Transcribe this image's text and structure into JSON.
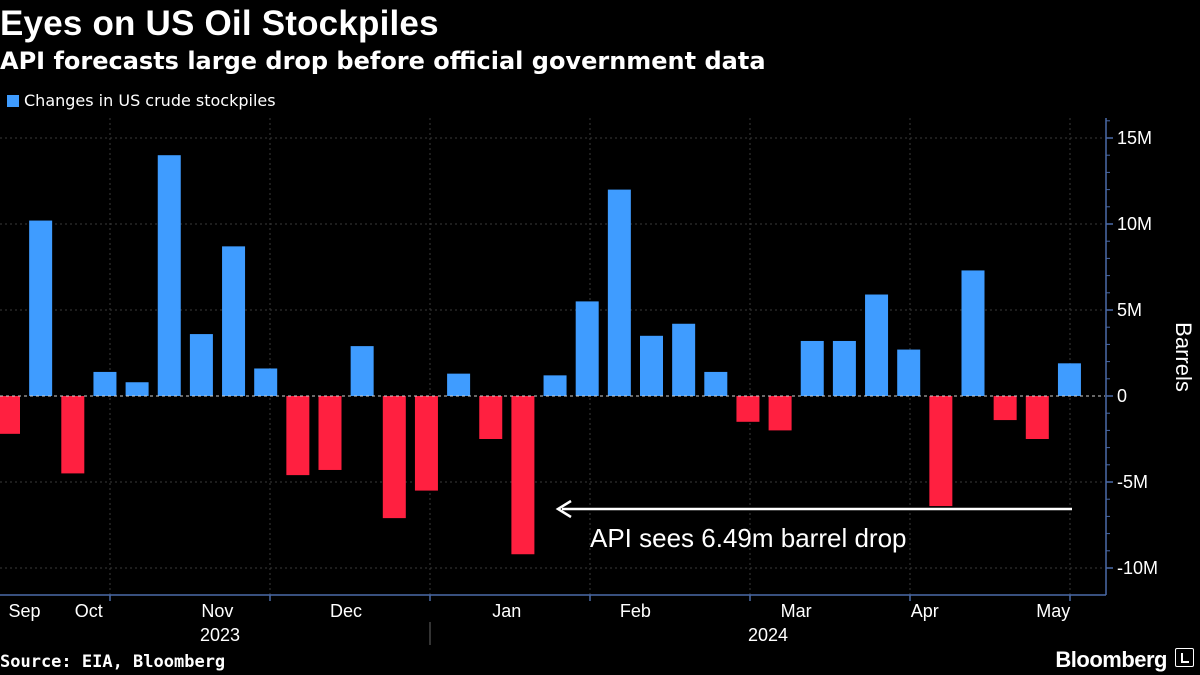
{
  "title": "Eyes on US Oil Stockpiles",
  "subtitle": "API forecasts large drop before official government data",
  "source": "Source: EIA, Bloomberg",
  "brand": "Bloomberg",
  "colors": {
    "positive": "#3f9cff",
    "negative": "#ff2040",
    "grid": "#3a3a3a",
    "axis": "#4a6aa8",
    "background": "#000000"
  },
  "chart_data": {
    "type": "bar",
    "series": [
      {
        "name": "Changes in US crude stockpiles",
        "values": [
          -2.2,
          10.2,
          -4.5,
          1.4,
          0.8,
          14.0,
          3.6,
          8.7,
          1.6,
          -4.6,
          -4.3,
          2.9,
          -7.1,
          -5.5,
          1.3,
          -2.5,
          -9.2,
          1.2,
          5.5,
          12.0,
          3.5,
          4.2,
          1.4,
          -1.5,
          -2.0,
          3.2,
          3.2,
          5.9,
          2.7,
          -6.4,
          7.3,
          -1.4,
          -2.5,
          1.9
        ]
      }
    ],
    "ylabel": "Barrels",
    "ylim": [
      -10.5,
      16.5
    ],
    "yticks": [
      15,
      10,
      5,
      0,
      -5,
      -10
    ],
    "ytick_labels": [
      "15M",
      "10M",
      "5M",
      "0",
      "-5M",
      "-10M"
    ],
    "month_labels": [
      {
        "label": "Sep",
        "bar": 0
      },
      {
        "label": "Oct",
        "bar": 2
      },
      {
        "label": "Nov",
        "bar": 6
      },
      {
        "label": "Dec",
        "bar": 10
      },
      {
        "label": "Jan",
        "bar": 15
      },
      {
        "label": "Feb",
        "bar": 19
      },
      {
        "label": "Mar",
        "bar": 24
      },
      {
        "label": "Apr",
        "bar": 28
      },
      {
        "label": "May",
        "bar": 32
      }
    ],
    "year_labels": [
      "2023",
      "2024"
    ],
    "grid": true,
    "legend_position": "top-left",
    "annotation": {
      "text": "API sees 6.49m barrel drop",
      "value": -6.49
    }
  }
}
